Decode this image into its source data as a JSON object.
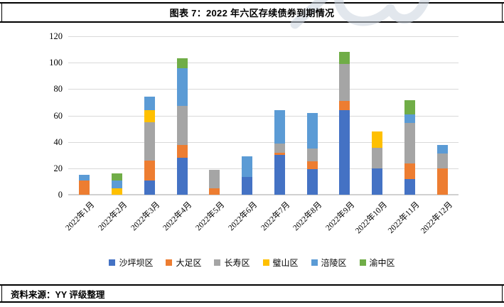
{
  "header": {
    "title": "图表 7：2022 年六区存续债券到期情况"
  },
  "footer": {
    "source": "资料来源：YY 评级整理"
  },
  "watermark": {
    "color": "#ccd5e0"
  },
  "chart_data": {
    "type": "bar",
    "stacked": true,
    "title": "图表 7：2022 年六区存续债券到期情况",
    "categories": [
      "2022年1月",
      "2022年2月",
      "2022年3月",
      "2022年4月",
      "2022年5月",
      "2022年6月",
      "2022年7月",
      "2022年8月",
      "2022年9月",
      "2022年10月",
      "2022年11月",
      "2022年12月"
    ],
    "series": [
      {
        "name": "沙坪坝区",
        "color": "#4472C4",
        "values": [
          0,
          0,
          11,
          28,
          0,
          13.5,
          30,
          19.5,
          64,
          20,
          12,
          0
        ]
      },
      {
        "name": "大足区",
        "color": "#ED7D31",
        "values": [
          10.5,
          0,
          15,
          9.5,
          5,
          0,
          2,
          6,
          7,
          0,
          11.5,
          20
        ]
      },
      {
        "name": "长寿区",
        "color": "#A5A5A5",
        "values": [
          0,
          0,
          29,
          30,
          14,
          0,
          7,
          9.5,
          28,
          15.5,
          31,
          11
        ]
      },
      {
        "name": "璧山区",
        "color": "#FFC000",
        "values": [
          0,
          5,
          9,
          0,
          0,
          0,
          0,
          0,
          0,
          12.5,
          0,
          0
        ]
      },
      {
        "name": "涪陵区",
        "color": "#5B9BD5",
        "values": [
          4.5,
          6,
          10,
          28.5,
          0,
          15.5,
          25,
          27,
          0,
          0,
          6.5,
          6.5
        ]
      },
      {
        "name": "渝中区",
        "color": "#70AD47",
        "values": [
          0,
          5,
          0,
          7.5,
          0,
          0,
          0,
          0,
          9,
          0,
          10.5,
          0
        ]
      }
    ],
    "xlabel": "",
    "ylabel": "",
    "ylim": [
      0,
      120
    ],
    "yticks": [
      0,
      20,
      40,
      60,
      80,
      100,
      120
    ],
    "grid": true,
    "gridline_color": "#d9d9d9",
    "legend_position": "bottom"
  }
}
